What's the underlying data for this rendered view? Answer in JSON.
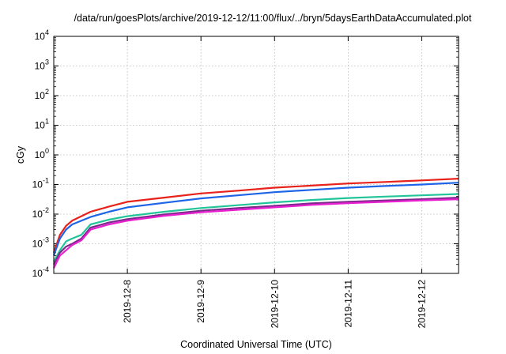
{
  "chart_data": {
    "type": "line",
    "title": "/data/run/goesPlots/archive/2019-12-12/11:00/flux/../bryn/5daysEarthDataAccumulated.plot",
    "xlabel": "Coordinated Universal Time (UTC)",
    "ylabel": "cGy",
    "yscale": "log",
    "ylim": [
      0.0001,
      10000
    ],
    "xlim": [
      "2019-12-07 00:00",
      "2019-12-12 12:00"
    ],
    "grid": true,
    "x_ticks": [
      {
        "t": "2019-12-08 00:00",
        "label": "2019-12-8"
      },
      {
        "t": "2019-12-09 00:00",
        "label": "2019-12-9"
      },
      {
        "t": "2019-12-10 00:00",
        "label": "2019-12-10"
      },
      {
        "t": "2019-12-11 00:00",
        "label": "2019-12-11"
      },
      {
        "t": "2019-12-12 00:00",
        "label": "2019-12-12"
      }
    ],
    "y_ticks": [
      {
        "v": 0.0001,
        "base": "10",
        "exp": "-4"
      },
      {
        "v": 0.001,
        "base": "10",
        "exp": "-3"
      },
      {
        "v": 0.01,
        "base": "10",
        "exp": "-2"
      },
      {
        "v": 0.1,
        "base": "10",
        "exp": "-1"
      },
      {
        "v": 1,
        "base": "10",
        "exp": "0"
      },
      {
        "v": 10,
        "base": "10",
        "exp": "1"
      },
      {
        "v": 100,
        "base": "10",
        "exp": "2"
      },
      {
        "v": 1000,
        "base": "10",
        "exp": "3"
      },
      {
        "v": 10000,
        "base": "10",
        "exp": "4"
      }
    ],
    "series": [
      {
        "color": "#e8211a",
        "points": [
          [
            "2019-12-07 00:00",
            0.0005
          ],
          [
            "2019-12-07 02:00",
            0.002
          ],
          [
            "2019-12-07 04:00",
            0.004
          ],
          [
            "2019-12-07 06:00",
            0.006
          ],
          [
            "2019-12-07 12:00",
            0.012
          ],
          [
            "2019-12-07 18:00",
            0.018
          ],
          [
            "2019-12-08 00:00",
            0.026
          ],
          [
            "2019-12-08 12:00",
            0.036
          ],
          [
            "2019-12-09 00:00",
            0.05
          ],
          [
            "2019-12-09 12:00",
            0.062
          ],
          [
            "2019-12-10 00:00",
            0.078
          ],
          [
            "2019-12-10 12:00",
            0.092
          ],
          [
            "2019-12-11 00:00",
            0.108
          ],
          [
            "2019-12-11 12:00",
            0.122
          ],
          [
            "2019-12-12 00:00",
            0.138
          ],
          [
            "2019-12-12 12:00",
            0.158
          ]
        ]
      },
      {
        "color": "#1e64e6",
        "points": [
          [
            "2019-12-07 00:00",
            0.0004
          ],
          [
            "2019-12-07 02:00",
            0.0015
          ],
          [
            "2019-12-07 04:00",
            0.003
          ],
          [
            "2019-12-07 06:00",
            0.0045
          ],
          [
            "2019-12-07 12:00",
            0.008
          ],
          [
            "2019-12-07 18:00",
            0.012
          ],
          [
            "2019-12-08 00:00",
            0.017
          ],
          [
            "2019-12-08 12:00",
            0.024
          ],
          [
            "2019-12-09 00:00",
            0.034
          ],
          [
            "2019-12-09 12:00",
            0.043
          ],
          [
            "2019-12-10 00:00",
            0.055
          ],
          [
            "2019-12-10 12:00",
            0.066
          ],
          [
            "2019-12-11 00:00",
            0.078
          ],
          [
            "2019-12-11 12:00",
            0.089
          ],
          [
            "2019-12-12 00:00",
            0.1
          ],
          [
            "2019-12-12 12:00",
            0.115
          ]
        ]
      },
      {
        "color": "#22c49a",
        "points": [
          [
            "2019-12-07 00:00",
            0.00025
          ],
          [
            "2019-12-07 02:00",
            0.0006
          ],
          [
            "2019-12-07 04:00",
            0.0012
          ],
          [
            "2019-12-07 06:00",
            0.0015
          ],
          [
            "2019-12-07 09:00",
            0.002
          ],
          [
            "2019-12-07 12:00",
            0.0045
          ],
          [
            "2019-12-07 18:00",
            0.0065
          ],
          [
            "2019-12-08 00:00",
            0.0085
          ],
          [
            "2019-12-08 12:00",
            0.012
          ],
          [
            "2019-12-09 00:00",
            0.016
          ],
          [
            "2019-12-09 12:00",
            0.02
          ],
          [
            "2019-12-10 00:00",
            0.025
          ],
          [
            "2019-12-10 12:00",
            0.03
          ],
          [
            "2019-12-11 00:00",
            0.035
          ],
          [
            "2019-12-11 12:00",
            0.039
          ],
          [
            "2019-12-12 00:00",
            0.043
          ],
          [
            "2019-12-12 12:00",
            0.048
          ]
        ]
      },
      {
        "color": "#7a2a8a",
        "points": [
          [
            "2019-12-07 00:00",
            0.0002
          ],
          [
            "2019-12-07 02:00",
            0.0005
          ],
          [
            "2019-12-07 04:00",
            0.0008
          ],
          [
            "2019-12-07 06:00",
            0.001
          ],
          [
            "2019-12-07 09:00",
            0.0015
          ],
          [
            "2019-12-07 12:00",
            0.0035
          ],
          [
            "2019-12-07 18:00",
            0.0052
          ],
          [
            "2019-12-08 00:00",
            0.0068
          ],
          [
            "2019-12-08 12:00",
            0.0098
          ],
          [
            "2019-12-09 00:00",
            0.013
          ],
          [
            "2019-12-09 12:00",
            0.016
          ],
          [
            "2019-12-10 00:00",
            0.019
          ],
          [
            "2019-12-10 12:00",
            0.023
          ],
          [
            "2019-12-11 00:00",
            0.026
          ],
          [
            "2019-12-11 12:00",
            0.029
          ],
          [
            "2019-12-12 00:00",
            0.032
          ],
          [
            "2019-12-12 12:00",
            0.036
          ]
        ]
      },
      {
        "color": "#e81ecf",
        "points": [
          [
            "2019-12-07 00:00",
            0.00015
          ],
          [
            "2019-12-07 02:00",
            0.0004
          ],
          [
            "2019-12-07 04:00",
            0.0006
          ],
          [
            "2019-12-07 06:00",
            0.0009
          ],
          [
            "2019-12-07 09:00",
            0.0013
          ],
          [
            "2019-12-07 12:00",
            0.003
          ],
          [
            "2019-12-07 18:00",
            0.0045
          ],
          [
            "2019-12-08 00:00",
            0.006
          ],
          [
            "2019-12-08 12:00",
            0.0088
          ],
          [
            "2019-12-09 00:00",
            0.0115
          ],
          [
            "2019-12-09 12:00",
            0.014
          ],
          [
            "2019-12-10 00:00",
            0.017
          ],
          [
            "2019-12-10 12:00",
            0.0205
          ],
          [
            "2019-12-11 00:00",
            0.0235
          ],
          [
            "2019-12-11 12:00",
            0.026
          ],
          [
            "2019-12-12 00:00",
            0.029
          ],
          [
            "2019-12-12 12:00",
            0.032
          ]
        ]
      }
    ]
  }
}
